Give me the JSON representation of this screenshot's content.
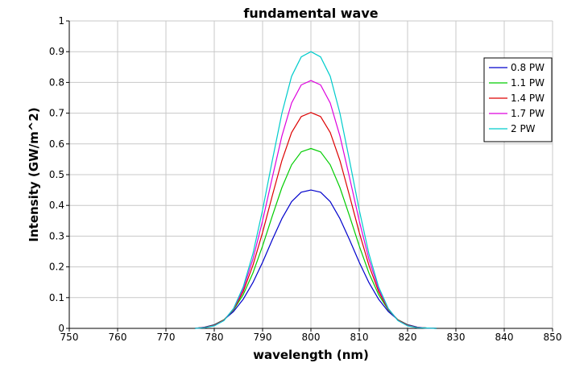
{
  "chart_data": {
    "type": "line",
    "title": "fundamental wave",
    "xlabel": "wavelength (nm)",
    "ylabel": "Intensity (GW/m^2)",
    "xlim": [
      750,
      850
    ],
    "ylim": [
      0,
      1
    ],
    "x_ticks": [
      "750",
      "760",
      "770",
      "780",
      "790",
      "800",
      "810",
      "820",
      "830",
      "840",
      "850"
    ],
    "y_ticks": [
      "0",
      "0.1",
      "0.2",
      "0.3",
      "0.4",
      "0.5",
      "0.6",
      "0.7",
      "0.8",
      "0.9",
      "1"
    ],
    "grid": true,
    "legend_position": "top-right",
    "x": [
      776,
      778,
      780,
      782,
      784,
      786,
      788,
      790,
      792,
      794,
      796,
      798,
      800,
      802,
      804,
      806,
      808,
      810,
      812,
      814,
      816,
      818,
      820,
      822,
      824,
      826
    ],
    "series": [
      {
        "name": "0.8 PW",
        "color": "#0000cc",
        "values": [
          0.0,
          0.004,
          0.012,
          0.028,
          0.055,
          0.095,
          0.149,
          0.215,
          0.288,
          0.357,
          0.412,
          0.443,
          0.45,
          0.443,
          0.412,
          0.357,
          0.288,
          0.215,
          0.149,
          0.095,
          0.055,
          0.028,
          0.012,
          0.004,
          0.001,
          0.0
        ]
      },
      {
        "name": "1.1 PW",
        "color": "#00cc00",
        "values": [
          0.0,
          0.003,
          0.011,
          0.028,
          0.06,
          0.11,
          0.18,
          0.268,
          0.365,
          0.458,
          0.532,
          0.574,
          0.585,
          0.574,
          0.532,
          0.458,
          0.365,
          0.268,
          0.18,
          0.11,
          0.06,
          0.028,
          0.011,
          0.003,
          0.001,
          0.0
        ]
      },
      {
        "name": "1.4 PW",
        "color": "#dd0000",
        "values": [
          0.0,
          0.003,
          0.01,
          0.027,
          0.062,
          0.12,
          0.205,
          0.312,
          0.431,
          0.546,
          0.637,
          0.689,
          0.702,
          0.689,
          0.637,
          0.546,
          0.431,
          0.312,
          0.205,
          0.12,
          0.062,
          0.027,
          0.01,
          0.003,
          0.001,
          0.0
        ]
      },
      {
        "name": "1.7 PW",
        "color": "#dd00dd",
        "values": [
          0.0,
          0.002,
          0.009,
          0.026,
          0.064,
          0.128,
          0.225,
          0.35,
          0.49,
          0.626,
          0.733,
          0.792,
          0.806,
          0.792,
          0.733,
          0.626,
          0.49,
          0.35,
          0.225,
          0.128,
          0.064,
          0.026,
          0.009,
          0.002,
          0.001,
          0.0
        ]
      },
      {
        "name": "2 PW",
        "color": "#00cccc",
        "values": [
          0.0,
          0.002,
          0.008,
          0.025,
          0.065,
          0.135,
          0.243,
          0.385,
          0.545,
          0.7,
          0.82,
          0.883,
          0.9,
          0.883,
          0.82,
          0.7,
          0.545,
          0.385,
          0.243,
          0.135,
          0.065,
          0.025,
          0.008,
          0.002,
          0.001,
          0.0
        ]
      }
    ]
  }
}
